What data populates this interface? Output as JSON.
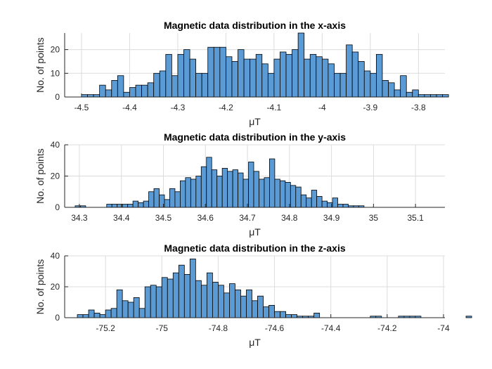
{
  "colors": {
    "bar_fill": "#5B9BD5",
    "bar_edge": "#000000",
    "grid": "#DCDCDC",
    "axis": "#262626"
  },
  "chart_data": [
    {
      "type": "bar",
      "title": "Magnetic data distribution in the x-axis",
      "xlabel": "μT",
      "ylabel": "No. of points",
      "grid": true,
      "xlim": [
        -4.535,
        -3.745
      ],
      "ylim": [
        0,
        27
      ],
      "xticks": [
        -4.5,
        -4.4,
        -4.3,
        -4.2,
        -4.1,
        -4.0,
        -3.9,
        -3.8
      ],
      "xtick_labels": [
        "-4.5",
        "-4.4",
        "-4.3",
        "-4.2",
        "-4.1",
        "-4",
        "-3.9",
        "-3.8"
      ],
      "yticks": [
        0,
        10,
        20
      ],
      "ytick_labels": [
        "0",
        "10",
        "20"
      ],
      "bin_start": -4.5,
      "bin_width": 0.0125,
      "values": [
        1,
        1,
        1,
        5,
        3,
        7,
        9,
        2,
        4,
        5,
        5,
        6,
        10,
        11,
        18,
        9,
        18,
        20,
        16,
        10,
        10,
        21,
        21,
        21,
        17,
        15,
        20,
        16,
        16,
        18,
        14,
        10,
        16,
        19,
        18,
        20,
        27,
        16,
        18,
        17,
        16,
        14,
        10,
        10,
        22,
        19,
        15,
        11,
        10,
        18,
        7,
        6,
        3,
        9,
        2,
        3,
        1,
        1,
        1,
        1,
        1
      ]
    },
    {
      "type": "bar",
      "title": "Magnetic data distribution in the y-axis",
      "xlabel": "μT",
      "ylabel": "No. of points",
      "grid": true,
      "xlim": [
        34.265,
        35.17
      ],
      "ylim": [
        0,
        40
      ],
      "xticks": [
        34.3,
        34.4,
        34.5,
        34.6,
        34.7,
        34.8,
        34.9,
        35.0,
        35.1
      ],
      "xtick_labels": [
        "34.3",
        "34.4",
        "34.5",
        "34.6",
        "34.7",
        "34.8",
        "34.9",
        "35",
        "35.1"
      ],
      "yticks": [
        0,
        20,
        40
      ],
      "ytick_labels": [
        "0",
        "20",
        "40"
      ],
      "bin_start": 34.29,
      "bin_width": 0.0125,
      "values": [
        1,
        1,
        0,
        0,
        0,
        0,
        2,
        2,
        2,
        2,
        2,
        4,
        3,
        4,
        10,
        12,
        8,
        5,
        12,
        10,
        17,
        19,
        18,
        20,
        26,
        32,
        24,
        20,
        25,
        23,
        24,
        22,
        18,
        29,
        23,
        18,
        19,
        31,
        18,
        17,
        16,
        14,
        13,
        8,
        6,
        11,
        7,
        4,
        3,
        6,
        2,
        2,
        1,
        1,
        1
      ]
    },
    {
      "type": "bar",
      "title": "Magnetic data distribution in the z-axis",
      "xlabel": "μT",
      "ylabel": "No. of points",
      "grid": true,
      "xlim": [
        -75.345,
        -73.995
      ],
      "ylim": [
        0,
        40
      ],
      "xticks": [
        -75.2,
        -75.0,
        -74.8,
        -74.6,
        -74.4,
        -74.2,
        -74.0
      ],
      "xtick_labels": [
        "-75.2",
        "-75",
        "-74.8",
        "-74.6",
        "-74.4",
        "-74.2",
        "-74"
      ],
      "yticks": [
        0,
        20,
        40
      ],
      "ytick_labels": [
        "0",
        "20",
        "40"
      ],
      "bin_start": -75.3,
      "bin_width": 0.02,
      "values": [
        2,
        2,
        5,
        3,
        2,
        5,
        6,
        18,
        11,
        10,
        13,
        6,
        20,
        21,
        20,
        26,
        25,
        29,
        34,
        28,
        38,
        24,
        21,
        29,
        23,
        21,
        16,
        22,
        18,
        14,
        18,
        11,
        14,
        7,
        8,
        4,
        4,
        2,
        2,
        1,
        1,
        1,
        3,
        0,
        0,
        0,
        0,
        0,
        0,
        0,
        0,
        0,
        1,
        1,
        0,
        0,
        0,
        1,
        1,
        1,
        1,
        0,
        0,
        0,
        0,
        0,
        0,
        0,
        0,
        1
      ]
    }
  ]
}
